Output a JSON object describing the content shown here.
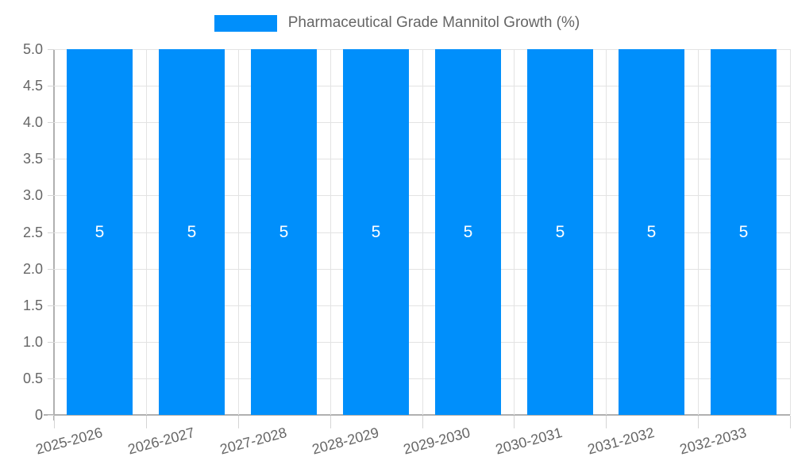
{
  "legend": {
    "label": "Pharmaceutical Grade Mannitol Growth (%)"
  },
  "colors": {
    "bar": "#008FFB",
    "axis": "#b0b0b0",
    "grid": "#e3e3e3",
    "tick_label": "#666666",
    "value_label": "#ffffff",
    "background": "#ffffff"
  },
  "chart_data": {
    "type": "bar",
    "title": "Pharmaceutical Grade Mannitol Growth (%)",
    "categories": [
      "2025-2026",
      "2026-2027",
      "2027-2028",
      "2028-2029",
      "2029-2030",
      "2030-2031",
      "2031-2032",
      "2032-2033"
    ],
    "values": [
      5,
      5,
      5,
      5,
      5,
      5,
      5,
      5
    ],
    "value_labels": [
      "5",
      "5",
      "5",
      "5",
      "5",
      "5",
      "5",
      "5"
    ],
    "xlabel": "",
    "ylabel": "",
    "ylim": [
      0,
      5
    ],
    "ytick_labels": [
      "5.0",
      "4.5",
      "4.0",
      "3.5",
      "3.0",
      "2.5",
      "2.0",
      "1.5",
      "1.0",
      "0.5",
      "0"
    ],
    "grid": true,
    "legend_position": "top",
    "bar_color": "#008FFB",
    "value_label_position": "center"
  }
}
